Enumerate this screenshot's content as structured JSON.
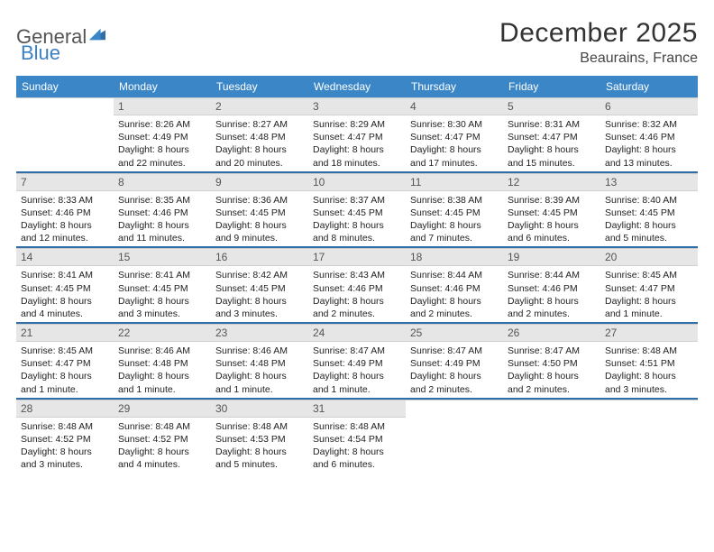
{
  "brand": {
    "part1": "General",
    "part2": "Blue"
  },
  "title": "December 2025",
  "location": "Beaurains, France",
  "dow": [
    "Sunday",
    "Monday",
    "Tuesday",
    "Wednesday",
    "Thursday",
    "Friday",
    "Saturday"
  ],
  "colors": {
    "header_bg": "#3b86c7",
    "week_divider": "#2f6fa8",
    "daybar_bg": "#e6e6e6",
    "text": "#222222"
  },
  "weeks": [
    [
      {
        "n": "",
        "sr": "",
        "ss": "",
        "dl": ""
      },
      {
        "n": "1",
        "sr": "Sunrise: 8:26 AM",
        "ss": "Sunset: 4:49 PM",
        "dl": "Daylight: 8 hours and 22 minutes."
      },
      {
        "n": "2",
        "sr": "Sunrise: 8:27 AM",
        "ss": "Sunset: 4:48 PM",
        "dl": "Daylight: 8 hours and 20 minutes."
      },
      {
        "n": "3",
        "sr": "Sunrise: 8:29 AM",
        "ss": "Sunset: 4:47 PM",
        "dl": "Daylight: 8 hours and 18 minutes."
      },
      {
        "n": "4",
        "sr": "Sunrise: 8:30 AM",
        "ss": "Sunset: 4:47 PM",
        "dl": "Daylight: 8 hours and 17 minutes."
      },
      {
        "n": "5",
        "sr": "Sunrise: 8:31 AM",
        "ss": "Sunset: 4:47 PM",
        "dl": "Daylight: 8 hours and 15 minutes."
      },
      {
        "n": "6",
        "sr": "Sunrise: 8:32 AM",
        "ss": "Sunset: 4:46 PM",
        "dl": "Daylight: 8 hours and 13 minutes."
      }
    ],
    [
      {
        "n": "7",
        "sr": "Sunrise: 8:33 AM",
        "ss": "Sunset: 4:46 PM",
        "dl": "Daylight: 8 hours and 12 minutes."
      },
      {
        "n": "8",
        "sr": "Sunrise: 8:35 AM",
        "ss": "Sunset: 4:46 PM",
        "dl": "Daylight: 8 hours and 11 minutes."
      },
      {
        "n": "9",
        "sr": "Sunrise: 8:36 AM",
        "ss": "Sunset: 4:45 PM",
        "dl": "Daylight: 8 hours and 9 minutes."
      },
      {
        "n": "10",
        "sr": "Sunrise: 8:37 AM",
        "ss": "Sunset: 4:45 PM",
        "dl": "Daylight: 8 hours and 8 minutes."
      },
      {
        "n": "11",
        "sr": "Sunrise: 8:38 AM",
        "ss": "Sunset: 4:45 PM",
        "dl": "Daylight: 8 hours and 7 minutes."
      },
      {
        "n": "12",
        "sr": "Sunrise: 8:39 AM",
        "ss": "Sunset: 4:45 PM",
        "dl": "Daylight: 8 hours and 6 minutes."
      },
      {
        "n": "13",
        "sr": "Sunrise: 8:40 AM",
        "ss": "Sunset: 4:45 PM",
        "dl": "Daylight: 8 hours and 5 minutes."
      }
    ],
    [
      {
        "n": "14",
        "sr": "Sunrise: 8:41 AM",
        "ss": "Sunset: 4:45 PM",
        "dl": "Daylight: 8 hours and 4 minutes."
      },
      {
        "n": "15",
        "sr": "Sunrise: 8:41 AM",
        "ss": "Sunset: 4:45 PM",
        "dl": "Daylight: 8 hours and 3 minutes."
      },
      {
        "n": "16",
        "sr": "Sunrise: 8:42 AM",
        "ss": "Sunset: 4:45 PM",
        "dl": "Daylight: 8 hours and 3 minutes."
      },
      {
        "n": "17",
        "sr": "Sunrise: 8:43 AM",
        "ss": "Sunset: 4:46 PM",
        "dl": "Daylight: 8 hours and 2 minutes."
      },
      {
        "n": "18",
        "sr": "Sunrise: 8:44 AM",
        "ss": "Sunset: 4:46 PM",
        "dl": "Daylight: 8 hours and 2 minutes."
      },
      {
        "n": "19",
        "sr": "Sunrise: 8:44 AM",
        "ss": "Sunset: 4:46 PM",
        "dl": "Daylight: 8 hours and 2 minutes."
      },
      {
        "n": "20",
        "sr": "Sunrise: 8:45 AM",
        "ss": "Sunset: 4:47 PM",
        "dl": "Daylight: 8 hours and 1 minute."
      }
    ],
    [
      {
        "n": "21",
        "sr": "Sunrise: 8:45 AM",
        "ss": "Sunset: 4:47 PM",
        "dl": "Daylight: 8 hours and 1 minute."
      },
      {
        "n": "22",
        "sr": "Sunrise: 8:46 AM",
        "ss": "Sunset: 4:48 PM",
        "dl": "Daylight: 8 hours and 1 minute."
      },
      {
        "n": "23",
        "sr": "Sunrise: 8:46 AM",
        "ss": "Sunset: 4:48 PM",
        "dl": "Daylight: 8 hours and 1 minute."
      },
      {
        "n": "24",
        "sr": "Sunrise: 8:47 AM",
        "ss": "Sunset: 4:49 PM",
        "dl": "Daylight: 8 hours and 1 minute."
      },
      {
        "n": "25",
        "sr": "Sunrise: 8:47 AM",
        "ss": "Sunset: 4:49 PM",
        "dl": "Daylight: 8 hours and 2 minutes."
      },
      {
        "n": "26",
        "sr": "Sunrise: 8:47 AM",
        "ss": "Sunset: 4:50 PM",
        "dl": "Daylight: 8 hours and 2 minutes."
      },
      {
        "n": "27",
        "sr": "Sunrise: 8:48 AM",
        "ss": "Sunset: 4:51 PM",
        "dl": "Daylight: 8 hours and 3 minutes."
      }
    ],
    [
      {
        "n": "28",
        "sr": "Sunrise: 8:48 AM",
        "ss": "Sunset: 4:52 PM",
        "dl": "Daylight: 8 hours and 3 minutes."
      },
      {
        "n": "29",
        "sr": "Sunrise: 8:48 AM",
        "ss": "Sunset: 4:52 PM",
        "dl": "Daylight: 8 hours and 4 minutes."
      },
      {
        "n": "30",
        "sr": "Sunrise: 8:48 AM",
        "ss": "Sunset: 4:53 PM",
        "dl": "Daylight: 8 hours and 5 minutes."
      },
      {
        "n": "31",
        "sr": "Sunrise: 8:48 AM",
        "ss": "Sunset: 4:54 PM",
        "dl": "Daylight: 8 hours and 6 minutes."
      },
      {
        "n": "",
        "sr": "",
        "ss": "",
        "dl": ""
      },
      {
        "n": "",
        "sr": "",
        "ss": "",
        "dl": ""
      },
      {
        "n": "",
        "sr": "",
        "ss": "",
        "dl": ""
      }
    ]
  ]
}
